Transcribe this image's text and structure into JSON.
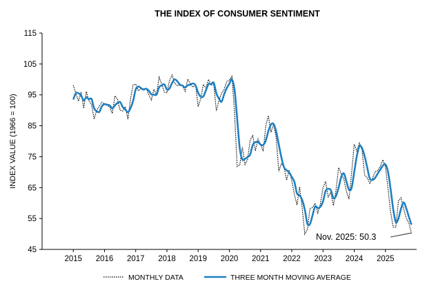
{
  "chart_data": {
    "type": "line",
    "title": "THE INDEX OF CONSUMER SENTIMENT",
    "ylabel": "INDEX VALUE (1966 = 100)",
    "xlabel": "",
    "ylim": [
      45,
      115
    ],
    "yticks": [
      45,
      55,
      65,
      75,
      85,
      95,
      105,
      115
    ],
    "xlim": [
      2014.0,
      2026.0
    ],
    "xticks": [
      2015,
      2016,
      2017,
      2018,
      2019,
      2020,
      2021,
      2022,
      2023,
      2024,
      2025
    ],
    "grid": false,
    "legend_position": "bottom",
    "colors": {
      "monthly": "#000000",
      "moving_average": "#1f7fc1"
    },
    "annotation": {
      "text": "Nov. 2025: 50.3",
      "x": 2025.83,
      "y": 50.3
    },
    "series": [
      {
        "name": "MONTHLY DATA",
        "style": "dotted",
        "x_start": 2015.0,
        "x_step": 0.08333,
        "values": [
          98.1,
          95.4,
          93.0,
          95.9,
          90.7,
          96.1,
          93.1,
          91.9,
          87.2,
          90.0,
          91.3,
          92.6,
          92.0,
          91.7,
          91.0,
          89.0,
          94.7,
          93.5,
          90.0,
          89.8,
          91.2,
          87.2,
          93.8,
          98.2,
          98.5,
          96.3,
          96.9,
          97.0,
          97.1,
          95.1,
          93.4,
          96.8,
          95.1,
          100.7,
          98.5,
          95.9,
          95.7,
          99.7,
          101.4,
          98.8,
          98.0,
          98.2,
          97.9,
          96.2,
          100.1,
          98.6,
          97.5,
          98.3,
          91.2,
          93.8,
          98.4,
          97.2,
          100.0,
          98.2,
          98.4,
          89.8,
          93.2,
          95.5,
          96.8,
          99.3,
          99.8,
          101.0,
          89.1,
          71.8,
          72.3,
          78.1,
          72.5,
          74.1,
          80.4,
          81.8,
          76.9,
          80.7,
          79.0,
          76.8,
          84.9,
          88.3,
          82.9,
          85.5,
          81.2,
          70.3,
          72.8,
          71.7,
          67.4,
          70.6,
          67.2,
          62.8,
          59.4,
          65.2,
          58.4,
          50.0,
          51.5,
          58.2,
          58.6,
          59.9,
          56.8,
          59.7,
          64.9,
          67.0,
          62.0,
          63.5,
          59.2,
          64.2,
          71.5,
          69.5,
          67.8,
          63.8,
          61.3,
          69.7,
          79.0,
          76.9,
          79.4,
          77.2,
          69.1,
          68.2,
          66.4,
          67.9,
          70.1,
          70.5,
          71.8,
          74.0,
          71.7,
          64.7,
          57.0,
          52.2,
          52.2,
          60.7,
          61.7,
          58.2,
          55.1,
          53.6,
          50.3
        ]
      },
      {
        "name": "THREE MONTH MOVING AVERAGE",
        "style": "solid",
        "x_start": 2015.0,
        "x_step": 0.08333,
        "values": [
          93.5,
          95.6,
          95.5,
          94.8,
          93.2,
          94.2,
          93.6,
          93.7,
          90.7,
          89.7,
          89.5,
          91.3,
          92.0,
          91.8,
          91.6,
          90.6,
          91.6,
          92.4,
          92.7,
          91.1,
          90.3,
          89.4,
          90.7,
          93.1,
          96.8,
          97.7,
          97.2,
          96.7,
          97.0,
          96.4,
          95.2,
          95.1,
          95.1,
          97.5,
          98.1,
          98.4,
          96.7,
          97.1,
          98.9,
          100.0,
          99.4,
          98.3,
          98.0,
          97.4,
          98.1,
          98.3,
          98.7,
          98.1,
          95.7,
          94.4,
          94.5,
          96.5,
          98.5,
          98.5,
          98.9,
          95.5,
          93.8,
          92.8,
          95.2,
          97.2,
          98.6,
          100.0,
          96.6,
          87.3,
          77.7,
          74.1,
          74.3,
          74.9,
          75.7,
          78.8,
          79.7,
          79.8,
          78.9,
          78.8,
          80.2,
          83.3,
          85.4,
          85.6,
          83.2,
          79.0,
          74.8,
          71.6,
          70.6,
          69.9,
          68.4,
          66.9,
          63.1,
          62.5,
          61.0,
          57.9,
          53.3,
          53.2,
          56.1,
          58.9,
          58.4,
          58.8,
          60.5,
          63.9,
          64.6,
          64.2,
          61.6,
          62.3,
          65.0,
          68.4,
          69.6,
          67.0,
          64.3,
          64.9,
          70.0,
          75.2,
          78.4,
          77.8,
          75.2,
          71.5,
          67.9,
          67.5,
          68.1,
          69.5,
          70.8,
          72.1,
          72.5,
          70.1,
          64.5,
          58.0,
          53.8,
          55.0,
          58.2,
          60.2,
          58.3,
          55.6,
          53.0
        ]
      }
    ]
  }
}
